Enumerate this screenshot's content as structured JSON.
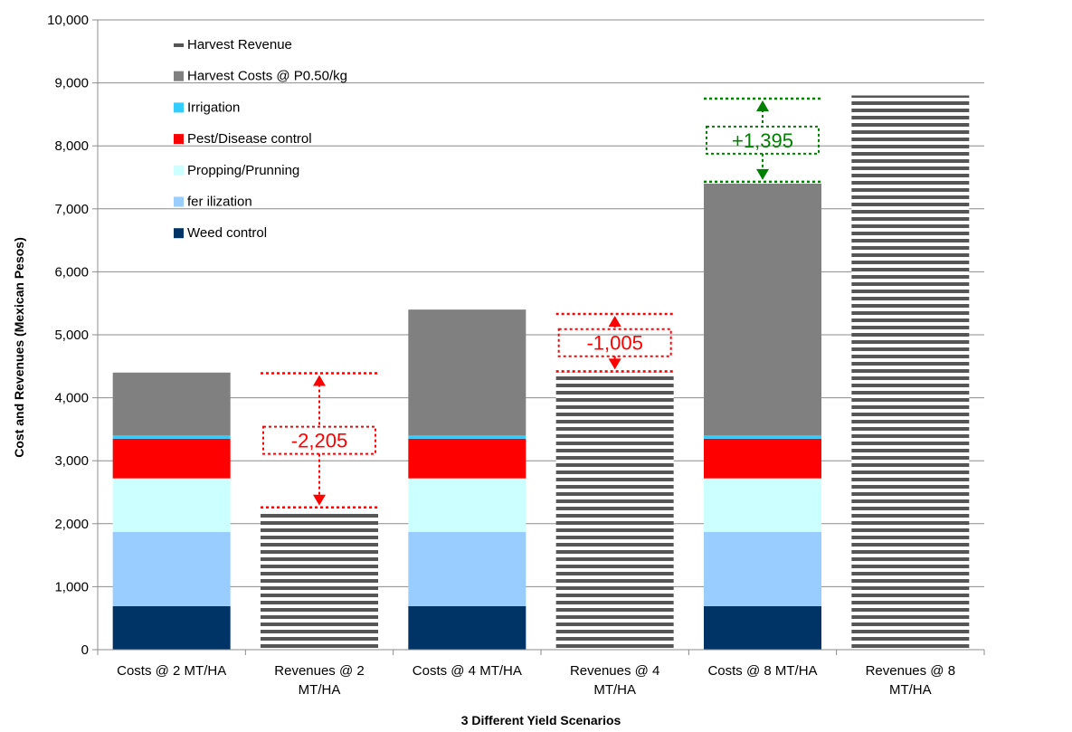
{
  "chart_data": {
    "type": "bar",
    "stacked": true,
    "xlabel": "3 Different Yield Scenarios",
    "ylabel": "Cost and Revenues (Mexican Pesos)",
    "ylim": [
      0,
      10000
    ],
    "yticks": [
      0,
      1000,
      2000,
      3000,
      4000,
      5000,
      6000,
      7000,
      8000,
      9000,
      10000
    ],
    "ytick_labels": [
      "0",
      "1,000",
      "2,000",
      "3,000",
      "4,000",
      "5,000",
      "6,000",
      "7,000",
      "8,000",
      "9,000",
      "10,000"
    ],
    "grid": "horizontal",
    "legend_position": "top-left",
    "categories": [
      [
        "Costs @ 2 MT/HA"
      ],
      [
        "Revenues @ 2",
        "MT/HA"
      ],
      [
        "Costs @ 4 MT/HA"
      ],
      [
        "Revenues @ 4",
        "MT/HA"
      ],
      [
        "Costs @ 8 MT/HA"
      ],
      [
        "Revenues @ 8",
        "MT/HA"
      ]
    ],
    "series": [
      {
        "name": "Weed control",
        "color": "#003366",
        "pattern": "solid",
        "values": [
          690,
          0,
          690,
          0,
          690,
          0
        ]
      },
      {
        "name": "fer ilization",
        "color": "#99ccff",
        "pattern": "solid",
        "values": [
          1180,
          0,
          1180,
          0,
          1180,
          0
        ]
      },
      {
        "name": "Propping/Prunning",
        "color": "#ccffff",
        "pattern": "solid",
        "values": [
          850,
          0,
          850,
          0,
          850,
          0
        ]
      },
      {
        "name": "Pest/Disease control",
        "color": "#ff0000",
        "pattern": "solid",
        "values": [
          630,
          0,
          630,
          0,
          630,
          0
        ]
      },
      {
        "name": "Irrigation",
        "color": "#33ccff",
        "pattern": "solid",
        "values": [
          50,
          0,
          50,
          0,
          50,
          0
        ]
      },
      {
        "name": "Harvest Costs @ P0.50/kg",
        "color": "#808080",
        "pattern": "solid",
        "values": [
          1000,
          0,
          2000,
          0,
          4000,
          0
        ]
      },
      {
        "name": "Harvest Revenue",
        "color": "#555555",
        "pattern": "horizontal-stripes",
        "values": [
          0,
          2200,
          0,
          4400,
          0,
          8800
        ]
      }
    ],
    "legend_order": [
      "Harvest Revenue",
      "Harvest Costs @ P0.50/kg",
      "Irrigation",
      "Pest/Disease control",
      "Propping/Prunning",
      "fer ilization",
      "Weed control"
    ],
    "annotations": [
      {
        "text": "-2,205",
        "color": "#ff0000",
        "category_index": 1,
        "from": 2260,
        "to": 4390
      },
      {
        "text": "-1,005",
        "color": "#ff0000",
        "category_index": 3,
        "from": 4420,
        "to": 5330
      },
      {
        "text": "+1,395",
        "color": "#008000",
        "category_index": 4,
        "from": 7430,
        "to": 8750
      }
    ]
  }
}
